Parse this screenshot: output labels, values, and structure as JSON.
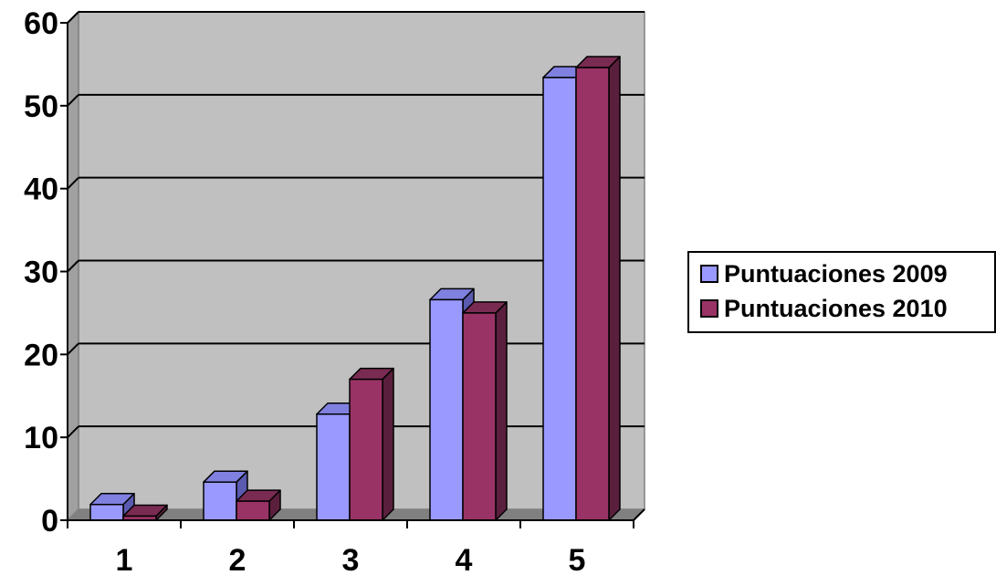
{
  "chart_data": {
    "type": "bar",
    "categories": [
      "1",
      "2",
      "3",
      "4",
      "5"
    ],
    "series": [
      {
        "name": "Puntuaciones 2009",
        "values": [
          1.9,
          4.6,
          12.8,
          26.6,
          53.4
        ]
      },
      {
        "name": "Puntuaciones 2010",
        "values": [
          0.5,
          2.3,
          17.0,
          25.0,
          54.6
        ]
      }
    ],
    "title": "",
    "xlabel": "",
    "ylabel": "",
    "ylim": [
      0,
      60
    ],
    "yticks": [
      "0",
      "10",
      "20",
      "30",
      "40",
      "50",
      "60"
    ],
    "grid": true,
    "legend_position": "right",
    "colors": {
      "series": [
        "#9999ff",
        "#993366"
      ],
      "series_top": [
        "#8080e0",
        "#7a2b52"
      ],
      "series_side": [
        "#5a5ab0",
        "#5a1f3d"
      ],
      "plot_back": "#c0c0c0",
      "plot_floor": "#808080"
    }
  }
}
